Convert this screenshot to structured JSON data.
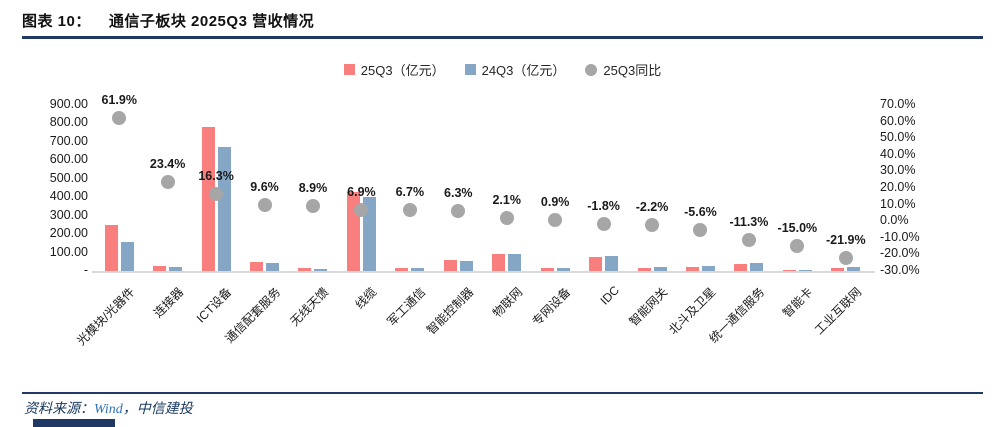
{
  "header": {
    "figure_label": "图表 10：",
    "title": "通信子板块 2025Q3 营收情况"
  },
  "legend": {
    "items": [
      {
        "label": "25Q3（亿元）",
        "marker": "square",
        "color": "#F97E7E"
      },
      {
        "label": "24Q3（亿元）",
        "marker": "square",
        "color": "#85A7C5"
      },
      {
        "label": "25Q3同比",
        "marker": "circle",
        "color": "#A6A6A6"
      }
    ]
  },
  "chart_data": {
    "type": "bar",
    "subtype": "grouped-bar-with-scatter-overlay",
    "title": "通信子板块 2025Q3 营收情况",
    "categories": [
      "光模块/光器件",
      "连接器",
      "ICT设备",
      "通信配套服务",
      "无线天馈",
      "线缆",
      "军工通信",
      "智能控制器",
      "物联网",
      "专网设备",
      "IDC",
      "智能网关",
      "北斗及卫星",
      "统一通信服务",
      "智能卡",
      "工业互联网"
    ],
    "series": [
      {
        "name": "25Q3（亿元）",
        "type": "bar",
        "axis": "left",
        "color": "#F97E7E",
        "values": [
          252,
          28,
          780,
          50,
          14,
          430,
          16,
          60,
          92,
          16,
          74,
          18,
          20,
          36,
          5,
          18
        ]
      },
      {
        "name": "24Q3（亿元）",
        "type": "bar",
        "axis": "left",
        "color": "#85A7C5",
        "values": [
          156,
          23,
          670,
          46,
          13,
          402,
          15,
          56,
          90,
          16,
          79,
          22,
          25,
          41,
          6,
          23
        ]
      },
      {
        "name": "25Q3同比",
        "type": "scatter",
        "axis": "right",
        "color": "#A6A6A6",
        "values_pct": [
          61.9,
          23.4,
          16.3,
          9.6,
          8.9,
          6.9,
          6.7,
          6.3,
          2.1,
          0.9,
          -1.8,
          -2.2,
          -5.6,
          -11.3,
          -15.0,
          -21.9
        ],
        "labels": [
          "61.9%",
          "23.4%",
          "16.3%",
          "9.6%",
          "8.9%",
          "6.9%",
          "6.7%",
          "6.3%",
          "2.1%",
          "0.9%",
          "-1.8%",
          "-2.2%",
          "-5.6%",
          "-11.3%",
          "-15.0%",
          "-21.9%"
        ]
      }
    ],
    "left_axis": {
      "min": 0,
      "max": 900,
      "ticks": [
        {
          "label": "900.00",
          "value": 900
        },
        {
          "label": "800.00",
          "value": 800
        },
        {
          "label": "700.00",
          "value": 700
        },
        {
          "label": "600.00",
          "value": 600
        },
        {
          "label": "500.00",
          "value": 500
        },
        {
          "label": "400.00",
          "value": 400
        },
        {
          "label": "300.00",
          "value": 300
        },
        {
          "label": "200.00",
          "value": 200
        },
        {
          "label": "100.00",
          "value": 100
        },
        {
          "label": "-",
          "value": 0
        }
      ]
    },
    "right_axis": {
      "min": -30,
      "max": 70,
      "ticks": [
        {
          "label": "70.0%",
          "value": 70
        },
        {
          "label": "60.0%",
          "value": 60
        },
        {
          "label": "50.0%",
          "value": 50
        },
        {
          "label": "40.0%",
          "value": 40
        },
        {
          "label": "30.0%",
          "value": 30
        },
        {
          "label": "20.0%",
          "value": 20
        },
        {
          "label": "10.0%",
          "value": 10
        },
        {
          "label": "0.0%",
          "value": 0
        },
        {
          "label": "-10.0%",
          "value": -10
        },
        {
          "label": "-20.0%",
          "value": -20
        },
        {
          "label": "-30.0%",
          "value": -30
        }
      ]
    },
    "grid": false,
    "legend_position": "top"
  },
  "footer": {
    "prefix": "资料来源：",
    "source_wind": "Wind",
    "separator": "，",
    "source_org": "中信建投"
  }
}
